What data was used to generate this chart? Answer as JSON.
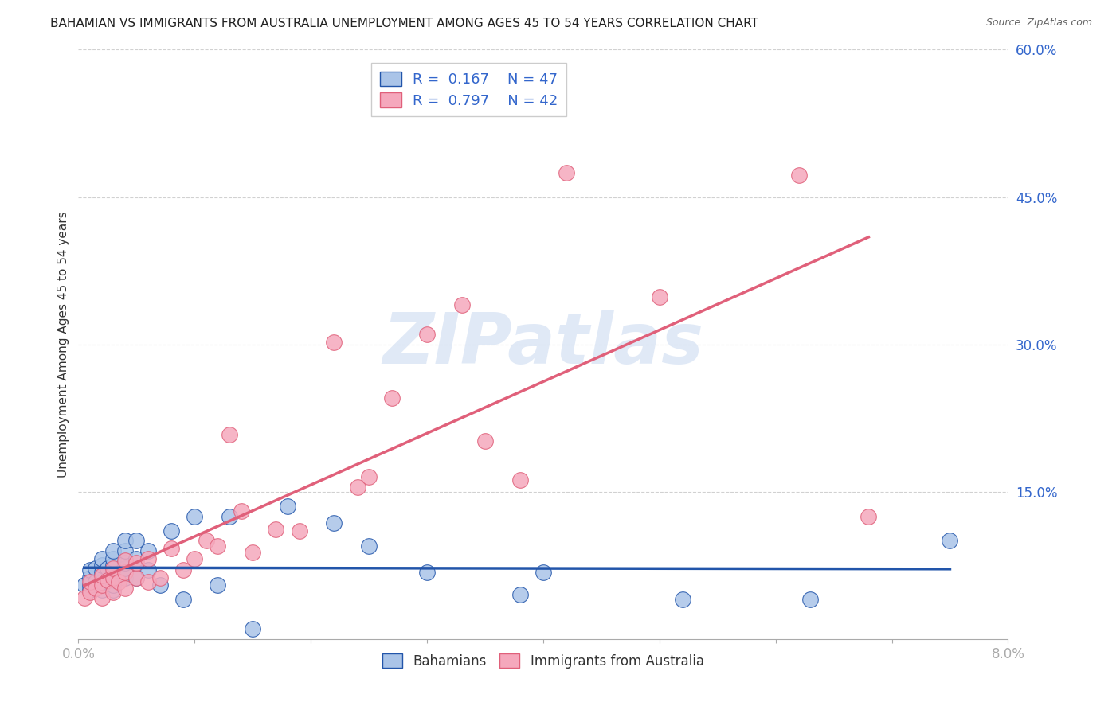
{
  "title": "BAHAMIAN VS IMMIGRANTS FROM AUSTRALIA UNEMPLOYMENT AMONG AGES 45 TO 54 YEARS CORRELATION CHART",
  "source": "Source: ZipAtlas.com",
  "ylabel": "Unemployment Among Ages 45 to 54 years",
  "xlim": [
    0.0,
    0.08
  ],
  "ylim": [
    0.0,
    0.6
  ],
  "xticks": [
    0.0,
    0.01,
    0.02,
    0.03,
    0.04,
    0.05,
    0.06,
    0.07,
    0.08
  ],
  "xtick_labels": [
    "0.0%",
    "",
    "",
    "",
    "",
    "",
    "",
    "",
    "8.0%"
  ],
  "ytick_labels": [
    "15.0%",
    "30.0%",
    "45.0%",
    "60.0%"
  ],
  "yticks": [
    0.15,
    0.3,
    0.45,
    0.6
  ],
  "bahamian_color": "#aac4e8",
  "australia_color": "#f5a8bc",
  "bahamian_edge_color": "#2255aa",
  "australia_edge_color": "#e0607a",
  "bahamian_line_color": "#2255aa",
  "australia_line_color": "#e0607a",
  "legend_R_bahamian": "0.167",
  "legend_N_bahamian": "47",
  "legend_R_australia": "0.797",
  "legend_N_australia": "42",
  "watermark": "ZIPatlas",
  "background_color": "#ffffff",
  "grid_color": "#cccccc",
  "tick_color": "#3366cc",
  "bahamian_x": [
    0.0005,
    0.001,
    0.001,
    0.001,
    0.001,
    0.0015,
    0.0015,
    0.002,
    0.002,
    0.002,
    0.002,
    0.002,
    0.0025,
    0.0025,
    0.003,
    0.003,
    0.003,
    0.003,
    0.003,
    0.003,
    0.003,
    0.004,
    0.004,
    0.004,
    0.004,
    0.004,
    0.005,
    0.005,
    0.005,
    0.006,
    0.006,
    0.007,
    0.008,
    0.009,
    0.01,
    0.012,
    0.013,
    0.015,
    0.018,
    0.022,
    0.025,
    0.03,
    0.038,
    0.04,
    0.052,
    0.063,
    0.075
  ],
  "bahamian_y": [
    0.055,
    0.05,
    0.055,
    0.062,
    0.07,
    0.058,
    0.072,
    0.05,
    0.058,
    0.068,
    0.075,
    0.082,
    0.06,
    0.072,
    0.05,
    0.06,
    0.068,
    0.075,
    0.082,
    0.09,
    0.055,
    0.062,
    0.072,
    0.078,
    0.09,
    0.1,
    0.062,
    0.082,
    0.1,
    0.07,
    0.09,
    0.055,
    0.11,
    0.04,
    0.125,
    0.055,
    0.125,
    0.01,
    0.135,
    0.118,
    0.095,
    0.068,
    0.045,
    0.068,
    0.04,
    0.04,
    0.1
  ],
  "australia_x": [
    0.0005,
    0.001,
    0.001,
    0.0015,
    0.002,
    0.002,
    0.002,
    0.0025,
    0.003,
    0.003,
    0.003,
    0.0035,
    0.004,
    0.004,
    0.004,
    0.005,
    0.005,
    0.006,
    0.006,
    0.007,
    0.008,
    0.009,
    0.01,
    0.011,
    0.012,
    0.013,
    0.014,
    0.015,
    0.017,
    0.019,
    0.022,
    0.024,
    0.025,
    0.027,
    0.03,
    0.033,
    0.035,
    0.038,
    0.042,
    0.05,
    0.062,
    0.068
  ],
  "australia_y": [
    0.042,
    0.048,
    0.058,
    0.052,
    0.042,
    0.055,
    0.065,
    0.06,
    0.048,
    0.062,
    0.072,
    0.058,
    0.052,
    0.068,
    0.08,
    0.062,
    0.078,
    0.058,
    0.082,
    0.062,
    0.092,
    0.07,
    0.082,
    0.1,
    0.095,
    0.208,
    0.13,
    0.088,
    0.112,
    0.11,
    0.302,
    0.155,
    0.165,
    0.245,
    0.31,
    0.34,
    0.202,
    0.162,
    0.475,
    0.348,
    0.472,
    0.125
  ]
}
